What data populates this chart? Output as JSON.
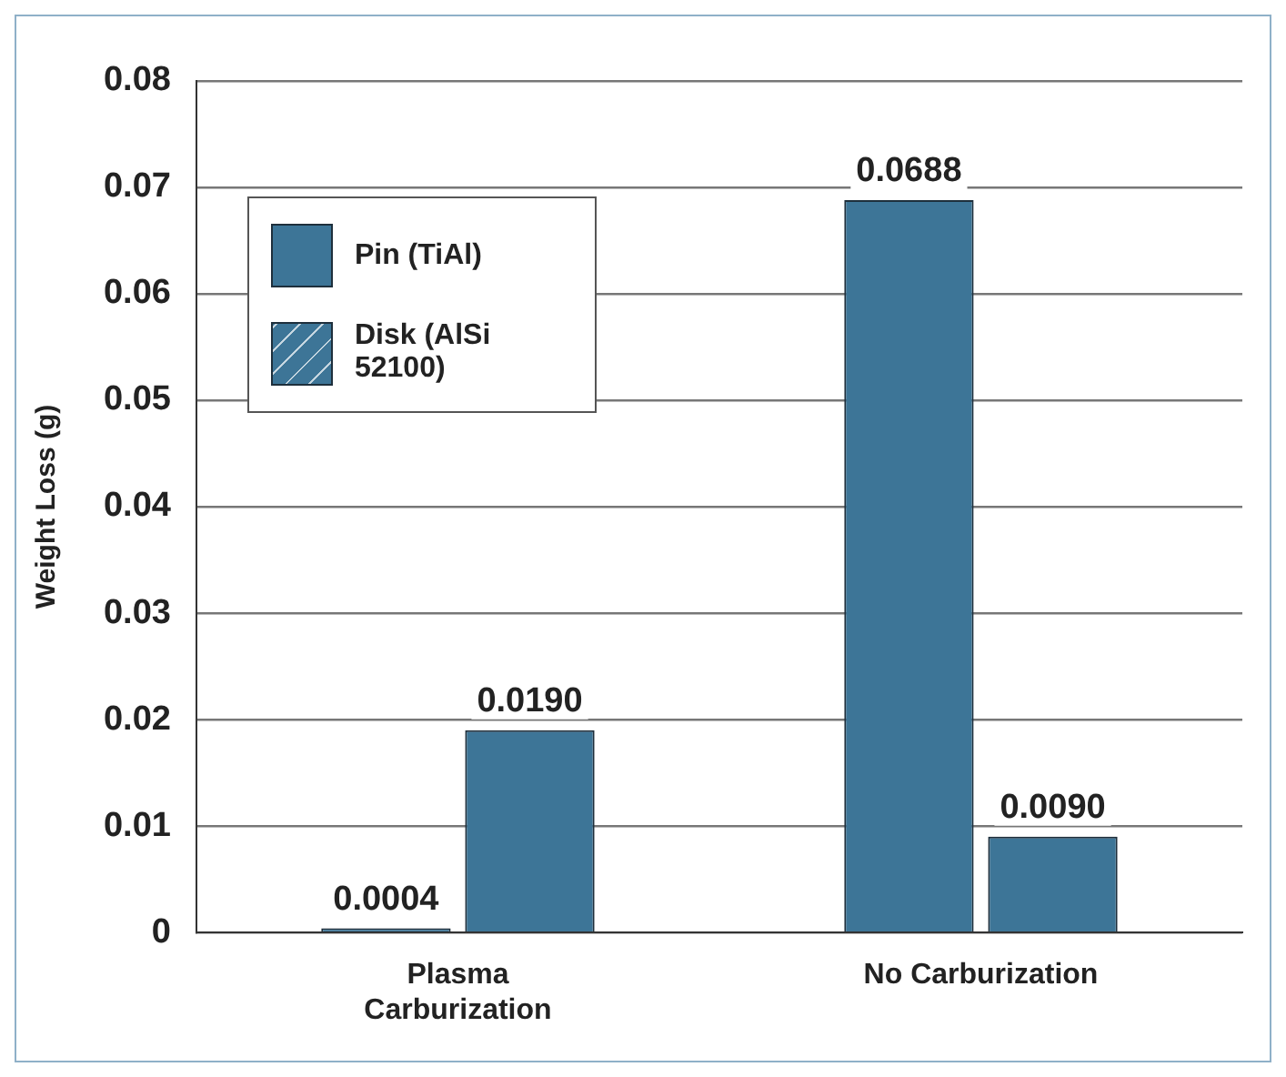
{
  "chart_data": {
    "type": "bar",
    "ylabel": "Weight Loss (g)",
    "categories": [
      "Plasma Carburization",
      "No Carburization"
    ],
    "series": [
      {
        "name": "Pin (TiAl)",
        "color": "#3d7597",
        "values": [
          0.0004,
          0.0688
        ],
        "value_labels": [
          "0.0004",
          "0.0688"
        ]
      },
      {
        "name": "Disk (AlSi 52100)",
        "color": "#3d7597",
        "values": [
          0.019,
          0.009
        ],
        "value_labels": [
          "0.0190",
          "0.0090"
        ]
      }
    ],
    "ylim": [
      0,
      0.08
    ],
    "yticks": [
      0,
      0.01,
      0.02,
      0.03,
      0.04,
      0.05,
      0.06,
      0.07,
      0.08
    ],
    "grid": "y",
    "legend": "top left"
  }
}
